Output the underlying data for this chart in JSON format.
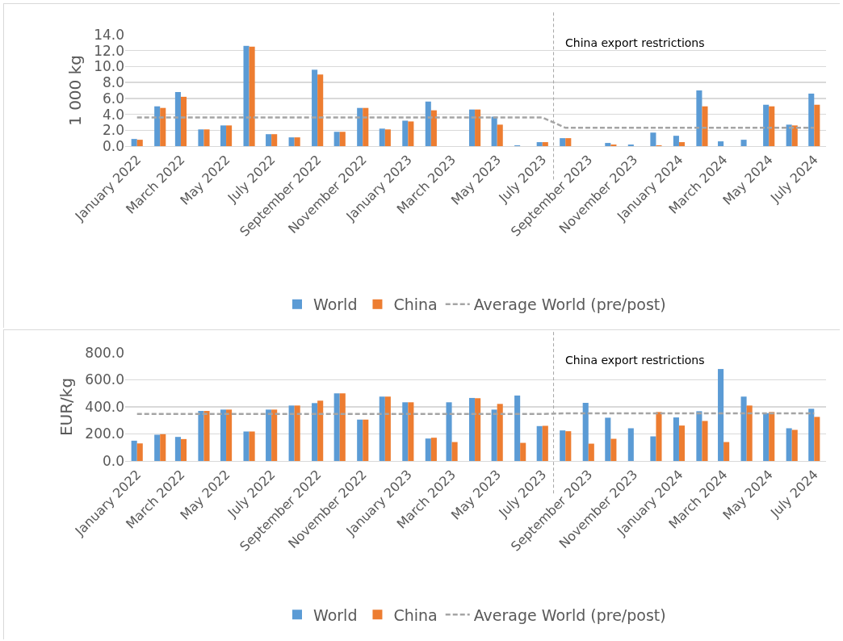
{
  "chart_data": [
    {
      "type": "bar",
      "ylabel": "1 000 kg",
      "x": [
        "2022-01",
        "2022-02",
        "2022-03",
        "2022-04",
        "2022-05",
        "2022-06",
        "2022-07",
        "2022-08",
        "2022-09",
        "2022-10",
        "2022-11",
        "2022-12",
        "2023-01",
        "2023-02",
        "2023-03",
        "2023-04",
        "2023-05",
        "2023-06",
        "2023-07",
        "2023-08",
        "2023-09",
        "2023-10",
        "2023-11",
        "2023-12",
        "2024-01",
        "2024-02",
        "2024-03",
        "2024-04",
        "2024-05",
        "2024-06",
        "2024-07"
      ],
      "series": [
        {
          "name": "World",
          "color": "#5b9bd5",
          "values": [
            0.9,
            5.0,
            6.8,
            2.1,
            2.6,
            12.6,
            1.5,
            1.1,
            9.6,
            1.8,
            4.8,
            2.2,
            3.2,
            5.6,
            null,
            4.6,
            3.7,
            0.1,
            0.5,
            1.0,
            null,
            0.4,
            0.2,
            1.7,
            1.3,
            7.0,
            0.6,
            0.8,
            5.2,
            2.7,
            6.6
          ]
        },
        {
          "name": "China",
          "color": "#ed7d31",
          "values": [
            0.8,
            4.8,
            6.2,
            2.1,
            2.6,
            12.5,
            1.5,
            1.1,
            9.0,
            1.8,
            4.8,
            2.1,
            3.1,
            4.5,
            null,
            4.6,
            2.7,
            0.0,
            0.5,
            1.0,
            null,
            0.2,
            0.0,
            0.1,
            0.5,
            5.0,
            0.0,
            0.0,
            5.0,
            2.6,
            5.2
          ]
        },
        {
          "name": "Average World (pre/post)",
          "type": "line",
          "line_style": "dashed",
          "color": "#a5a5a5",
          "values": [
            3.6,
            3.6,
            3.6,
            3.6,
            3.6,
            3.6,
            3.6,
            3.6,
            3.6,
            3.6,
            3.6,
            3.6,
            3.6,
            3.6,
            3.6,
            3.6,
            3.6,
            3.6,
            3.6,
            2.3,
            2.3,
            2.3,
            2.3,
            2.3,
            2.3,
            2.3,
            2.3,
            2.3,
            2.3,
            2.3,
            2.3
          ]
        }
      ],
      "xlim": [
        "2021-12-16",
        "2024-07-17"
      ],
      "xticks": [
        {
          "value": "2022-01",
          "label": "January 2022"
        },
        {
          "value": "2022-03",
          "label": "March 2022"
        },
        {
          "value": "2022-05",
          "label": "May 2022"
        },
        {
          "value": "2022-07",
          "label": "July 2022"
        },
        {
          "value": "2022-09",
          "label": "September 2022"
        },
        {
          "value": "2022-11",
          "label": "November 2022"
        },
        {
          "value": "2023-01",
          "label": "January 2023"
        },
        {
          "value": "2023-03",
          "label": "March 2023"
        },
        {
          "value": "2023-05",
          "label": "May 2023"
        },
        {
          "value": "2023-07",
          "label": "July 2023"
        },
        {
          "value": "2023-09",
          "label": "September 2023"
        },
        {
          "value": "2023-11",
          "label": "November 2023"
        },
        {
          "value": "2024-01",
          "label": "January 2024"
        },
        {
          "value": "2024-03",
          "label": "March 2024"
        },
        {
          "value": "2024-05",
          "label": "May 2024"
        },
        {
          "value": "2024-07",
          "label": "July 2024"
        }
      ],
      "ylim": [
        0,
        14
      ],
      "yticks": [
        {
          "value": 0,
          "label": "0.0"
        },
        {
          "value": 2,
          "label": "2.0"
        },
        {
          "value": 4,
          "label": "4.0"
        },
        {
          "value": 6,
          "label": "6.0"
        },
        {
          "value": 8,
          "label": "8.0"
        },
        {
          "value": 10,
          "label": "10.0"
        },
        {
          "value": 12,
          "label": "12.0"
        },
        {
          "value": 14,
          "label": "14.0"
        }
      ],
      "ref_lines": [
        {
          "axis": "x",
          "value": "2023-07-16",
          "label": "China export restrictions",
          "color": "#a5a5a5",
          "line_style": "dashed"
        }
      ],
      "grid": "y",
      "legend": "bottom",
      "marker": "none"
    },
    {
      "type": "bar",
      "ylabel": "EUR/kg",
      "x": [
        "2022-01",
        "2022-02",
        "2022-03",
        "2022-04",
        "2022-05",
        "2022-06",
        "2022-07",
        "2022-08",
        "2022-09",
        "2022-10",
        "2022-11",
        "2022-12",
        "2023-01",
        "2023-02",
        "2023-03",
        "2023-04",
        "2023-05",
        "2023-06",
        "2023-07",
        "2023-08",
        "2023-09",
        "2023-10",
        "2023-11",
        "2023-12",
        "2024-01",
        "2024-02",
        "2024-03",
        "2024-04",
        "2024-05",
        "2024-06",
        "2024-07"
      ],
      "series": [
        {
          "name": "World",
          "color": "#5b9bd5",
          "values": [
            150,
            194,
            178,
            370,
            380,
            218,
            380,
            410,
            428,
            500,
            306,
            476,
            434,
            166,
            434,
            466,
            380,
            484,
            258,
            226,
            430,
            320,
            242,
            182,
            322,
            368,
            680,
            476,
            354,
            242,
            386
          ]
        },
        {
          "name": "China",
          "color": "#ed7d31",
          "values": [
            130,
            198,
            162,
            370,
            380,
            218,
            380,
            410,
            446,
            500,
            306,
            476,
            434,
            172,
            140,
            464,
            422,
            134,
            260,
            220,
            128,
            164,
            null,
            362,
            262,
            296,
            140,
            410,
            362,
            230,
            326
          ]
        },
        {
          "name": "Average World (pre/post)",
          "type": "line",
          "line_style": "dashed",
          "color": "#a5a5a5",
          "values": [
            348,
            348,
            348,
            348,
            348,
            348,
            348,
            348,
            348,
            348,
            348,
            348,
            348,
            348,
            348,
            348,
            348,
            348,
            348,
            352,
            352,
            352,
            352,
            352,
            352,
            352,
            352,
            352,
            352,
            352,
            352
          ]
        }
      ],
      "xlim": [
        "2021-12-16",
        "2024-07-17"
      ],
      "xticks": [
        {
          "value": "2022-01",
          "label": "January 2022"
        },
        {
          "value": "2022-03",
          "label": "March 2022"
        },
        {
          "value": "2022-05",
          "label": "May 2022"
        },
        {
          "value": "2022-07",
          "label": "July 2022"
        },
        {
          "value": "2022-09",
          "label": "September 2022"
        },
        {
          "value": "2022-11",
          "label": "November 2022"
        },
        {
          "value": "2023-01",
          "label": "January 2023"
        },
        {
          "value": "2023-03",
          "label": "March 2023"
        },
        {
          "value": "2023-05",
          "label": "May 2023"
        },
        {
          "value": "2023-07",
          "label": "July 2023"
        },
        {
          "value": "2023-09",
          "label": "September 2023"
        },
        {
          "value": "2023-11",
          "label": "November 2023"
        },
        {
          "value": "2024-01",
          "label": "January 2024"
        },
        {
          "value": "2024-03",
          "label": "March 2024"
        },
        {
          "value": "2024-05",
          "label": "May 2024"
        },
        {
          "value": "2024-07",
          "label": "July 2024"
        }
      ],
      "ylim": [
        0,
        800
      ],
      "yticks": [
        {
          "value": 0,
          "label": "0.0"
        },
        {
          "value": 200,
          "label": "200.0"
        },
        {
          "value": 400,
          "label": "400.0"
        },
        {
          "value": 600,
          "label": "600.0"
        },
        {
          "value": 800,
          "label": "800.0"
        }
      ],
      "ref_lines": [
        {
          "axis": "x",
          "value": "2023-07-16",
          "label": "China export restrictions",
          "color": "#a5a5a5",
          "line_style": "dashed"
        }
      ],
      "grid": "y",
      "legend": "bottom",
      "marker": "none"
    }
  ]
}
